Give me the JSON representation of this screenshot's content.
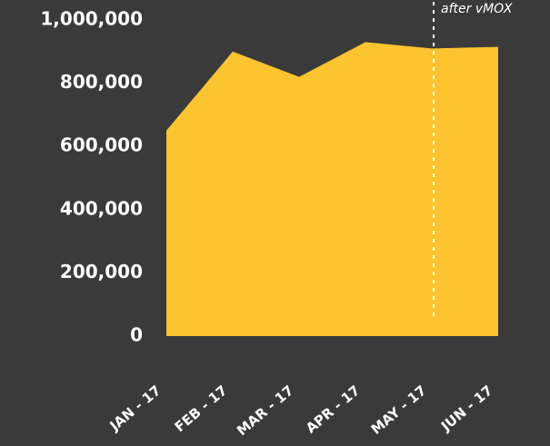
{
  "chart_data": {
    "type": "area",
    "categories": [
      "JAN - 17",
      "FEB - 17",
      "MAR - 17",
      "APR - 17",
      "MAY - 17",
      "JUN - 17"
    ],
    "values": [
      650000,
      900000,
      820000,
      930000,
      910000,
      915000
    ],
    "color": "#fcc42f",
    "ylim": [
      0,
      1000000
    ],
    "yticks": [
      0,
      {
        "value": 200000,
        "label": "200,000"
      },
      {
        "value": 400000,
        "label": "400,000"
      },
      {
        "value": 600000,
        "label": "600,000"
      },
      {
        "value": 800000,
        "label": "800,000"
      },
      {
        "value": 1000000,
        "label": "1,000,000"
      }
    ],
    "annotation": "after vMOX"
  }
}
